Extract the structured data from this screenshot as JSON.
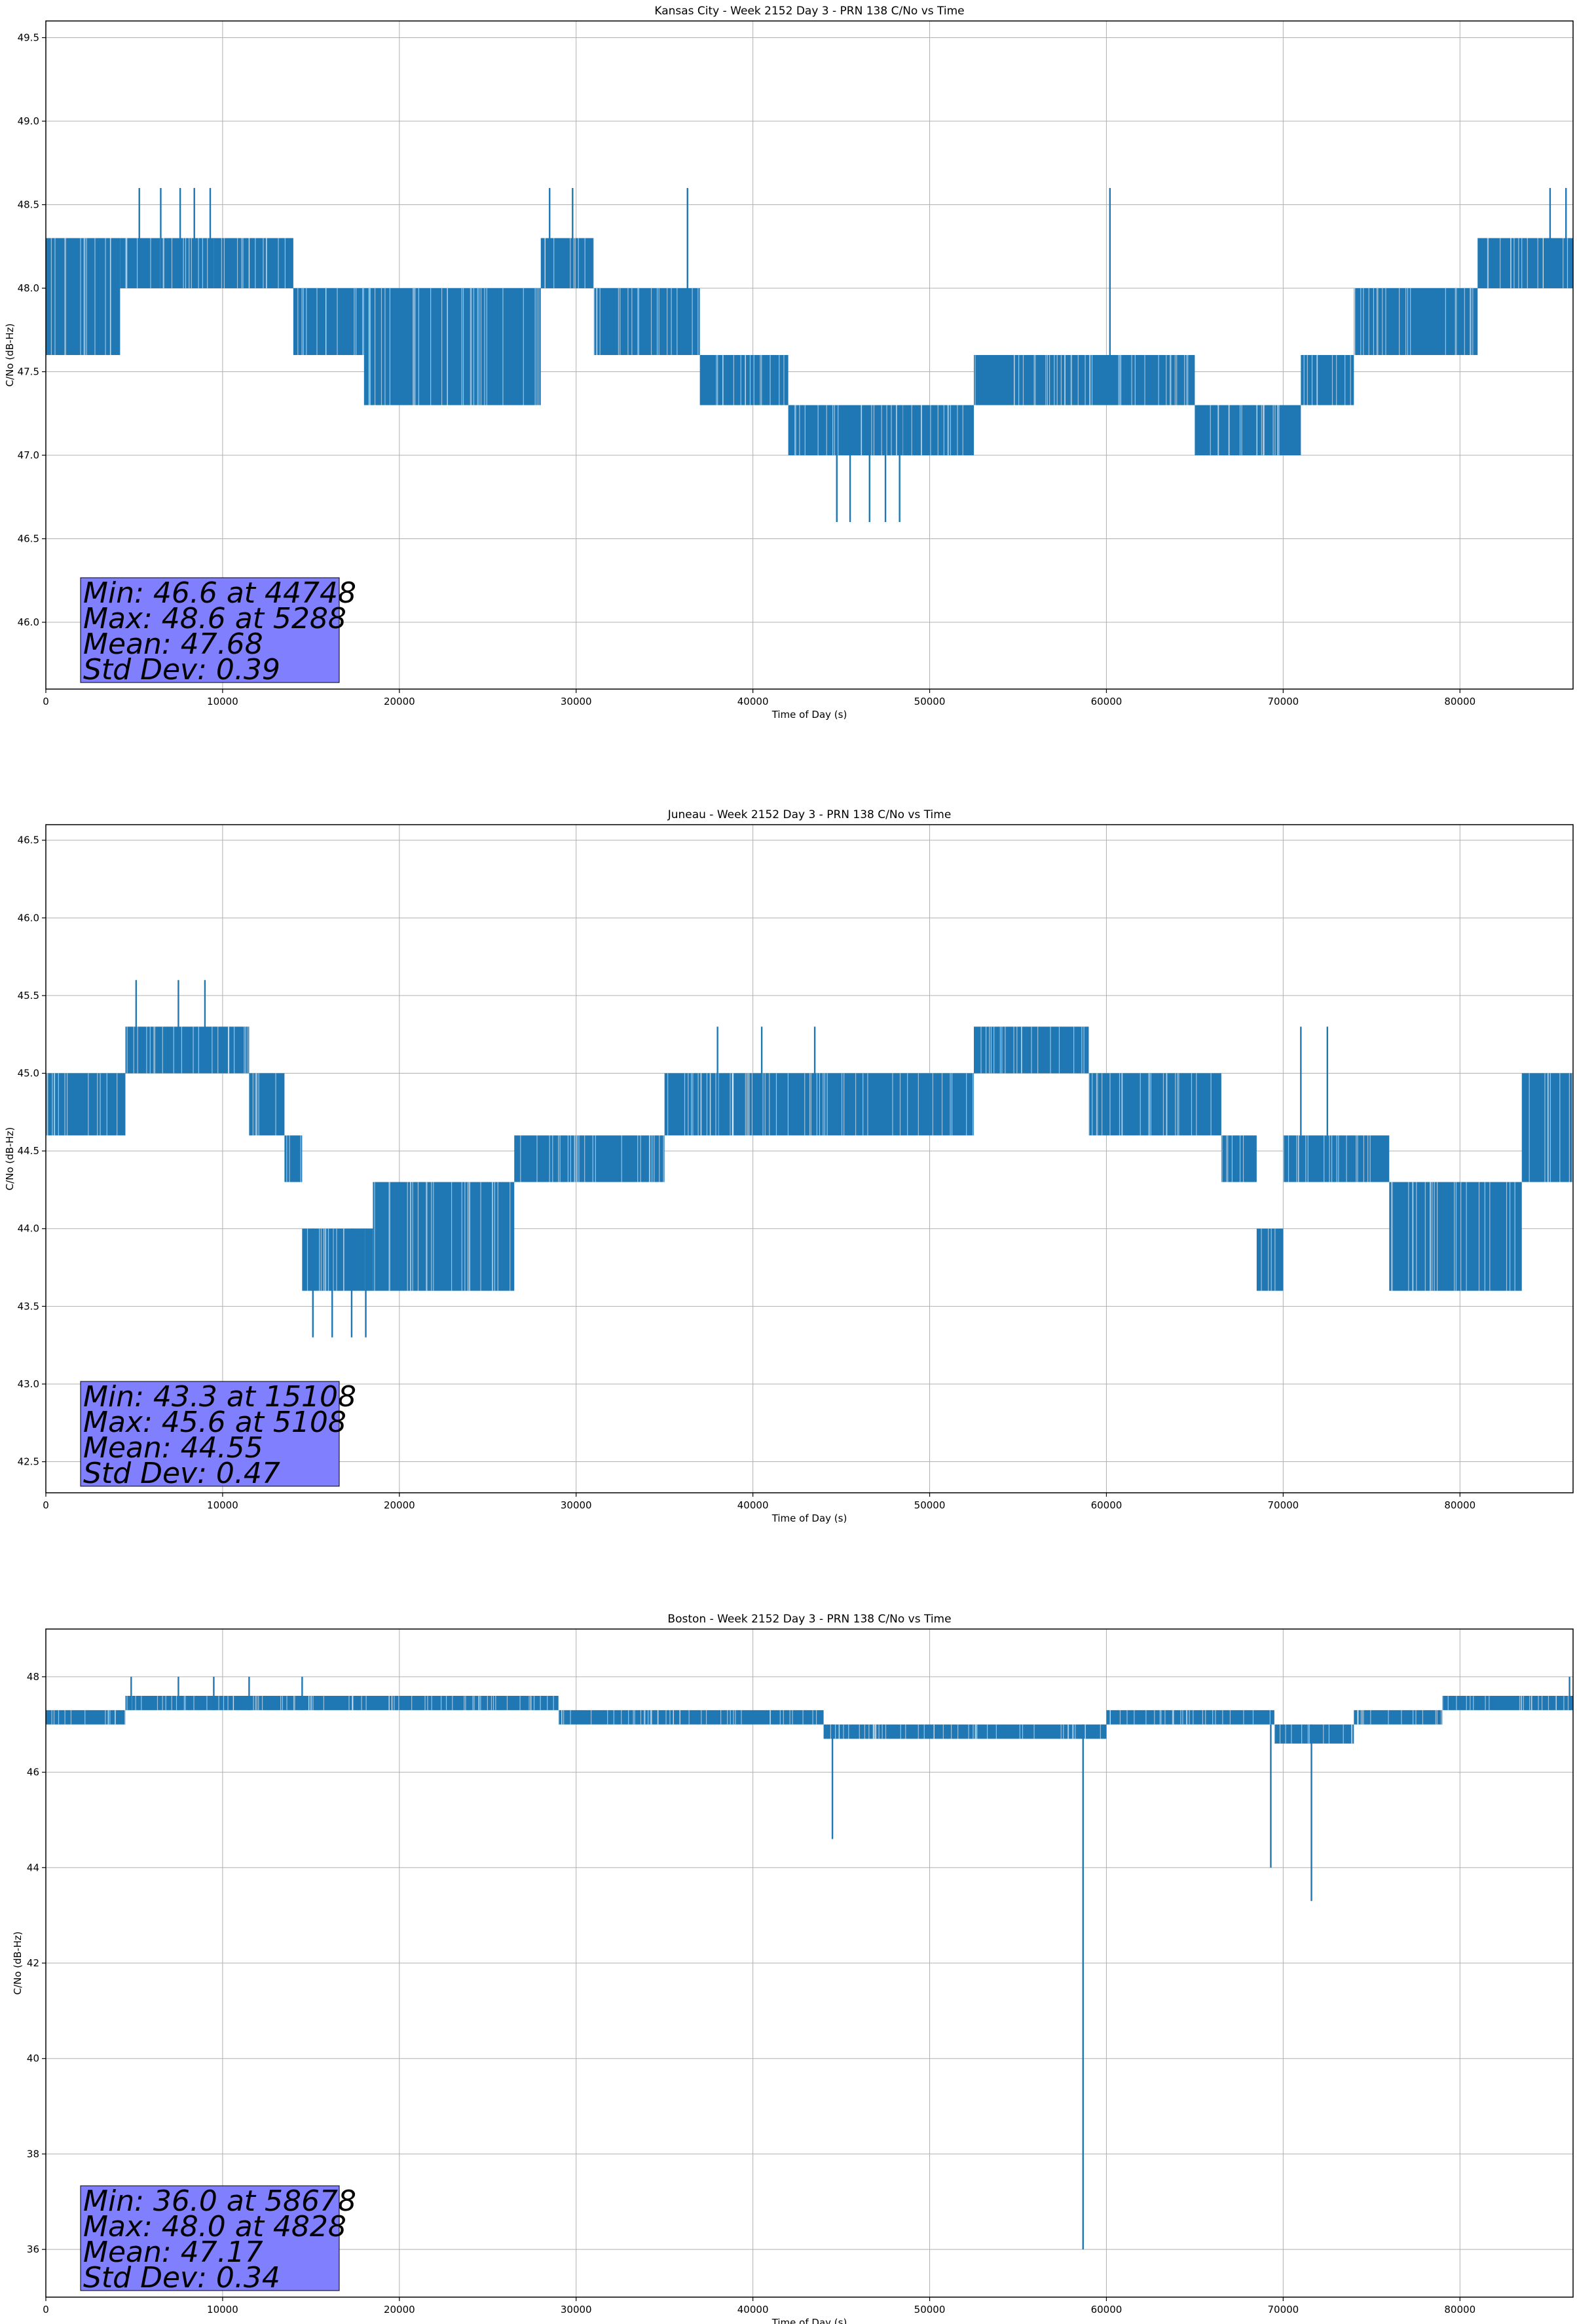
{
  "chart_data": [
    {
      "type": "line",
      "title": "Kansas City - Week 2152 Day 3 - PRN 138 C/No vs Time",
      "xlabel": "Time of Day (s)",
      "ylabel": "C/No (dB-Hz)",
      "xlim": [
        0,
        86400
      ],
      "ylim": [
        45.6,
        49.6
      ],
      "xticks": [
        0,
        10000,
        20000,
        30000,
        40000,
        50000,
        60000,
        70000,
        80000
      ],
      "yticks": [
        46.0,
        46.5,
        47.0,
        47.5,
        48.0,
        48.5,
        49.0,
        49.5
      ],
      "grid": true,
      "color": "#1f77b4",
      "segments": [
        {
          "x0": 0,
          "x1": 1500,
          "lo": 47.6,
          "hi": 48.3
        },
        {
          "x0": 1500,
          "x1": 4200,
          "lo": 47.6,
          "hi": 48.3
        },
        {
          "x0": 4200,
          "x1": 9500,
          "lo": 48.0,
          "hi": 48.3
        },
        {
          "x0": 9500,
          "x1": 14000,
          "lo": 48.0,
          "hi": 48.3
        },
        {
          "x0": 14000,
          "x1": 18000,
          "lo": 47.6,
          "hi": 48.0
        },
        {
          "x0": 18000,
          "x1": 28000,
          "lo": 47.3,
          "hi": 48.0
        },
        {
          "x0": 28000,
          "x1": 31000,
          "lo": 48.0,
          "hi": 48.3
        },
        {
          "x0": 31000,
          "x1": 37000,
          "lo": 47.6,
          "hi": 48.0
        },
        {
          "x0": 37000,
          "x1": 42000,
          "lo": 47.3,
          "hi": 47.6
        },
        {
          "x0": 42000,
          "x1": 48500,
          "lo": 47.0,
          "hi": 47.3
        },
        {
          "x0": 48500,
          "x1": 52500,
          "lo": 47.0,
          "hi": 47.3
        },
        {
          "x0": 52500,
          "x1": 58000,
          "lo": 47.3,
          "hi": 47.6
        },
        {
          "x0": 58000,
          "x1": 65000,
          "lo": 47.3,
          "hi": 47.6
        },
        {
          "x0": 65000,
          "x1": 71000,
          "lo": 47.0,
          "hi": 47.3
        },
        {
          "x0": 71000,
          "x1": 74000,
          "lo": 47.3,
          "hi": 47.6
        },
        {
          "x0": 74000,
          "x1": 81000,
          "lo": 47.6,
          "hi": 48.0
        },
        {
          "x0": 81000,
          "x1": 86400,
          "lo": 48.0,
          "hi": 48.3
        }
      ],
      "spikes": [
        {
          "x": 5288,
          "lo": 48.0,
          "hi": 48.6
        },
        {
          "x": 6500,
          "lo": 48.0,
          "hi": 48.6
        },
        {
          "x": 7600,
          "lo": 48.0,
          "hi": 48.6
        },
        {
          "x": 8400,
          "lo": 48.0,
          "hi": 48.6
        },
        {
          "x": 9300,
          "lo": 48.0,
          "hi": 48.6
        },
        {
          "x": 28500,
          "lo": 48.0,
          "hi": 48.6
        },
        {
          "x": 29800,
          "lo": 48.0,
          "hi": 48.6
        },
        {
          "x": 36300,
          "lo": 48.0,
          "hi": 48.6
        },
        {
          "x": 44748,
          "lo": 46.6,
          "hi": 47.3
        },
        {
          "x": 45500,
          "lo": 46.6,
          "hi": 47.3
        },
        {
          "x": 46600,
          "lo": 46.6,
          "hi": 47.3
        },
        {
          "x": 47500,
          "lo": 46.6,
          "hi": 47.3
        },
        {
          "x": 48300,
          "lo": 46.6,
          "hi": 47.3
        },
        {
          "x": 60200,
          "lo": 47.6,
          "hi": 48.6
        },
        {
          "x": 85100,
          "lo": 48.0,
          "hi": 48.6
        },
        {
          "x": 86000,
          "lo": 48.0,
          "hi": 48.6
        }
      ],
      "stats": {
        "min": "Min: 46.6 at 44748",
        "max": "Max: 48.6 at 5288",
        "mean": "Mean: 47.68",
        "std": "Std Dev: 0.39"
      }
    },
    {
      "type": "line",
      "title": "Juneau - Week 2152 Day 3 - PRN 138 C/No vs Time",
      "xlabel": "Time of Day (s)",
      "ylabel": "C/No (dB-Hz)",
      "xlim": [
        0,
        86400
      ],
      "ylim": [
        42.3,
        46.6
      ],
      "xticks": [
        0,
        10000,
        20000,
        30000,
        40000,
        50000,
        60000,
        70000,
        80000
      ],
      "yticks": [
        42.5,
        43.0,
        43.5,
        44.0,
        44.5,
        45.0,
        45.5,
        46.0,
        46.5
      ],
      "grid": true,
      "color": "#1f77b4",
      "segments": [
        {
          "x0": 0,
          "x1": 4500,
          "lo": 44.6,
          "hi": 45.0
        },
        {
          "x0": 4500,
          "x1": 11500,
          "lo": 45.0,
          "hi": 45.3
        },
        {
          "x0": 11500,
          "x1": 13500,
          "lo": 44.6,
          "hi": 45.0
        },
        {
          "x0": 13500,
          "x1": 14500,
          "lo": 44.3,
          "hi": 44.6
        },
        {
          "x0": 14500,
          "x1": 18500,
          "lo": 43.6,
          "hi": 44.0
        },
        {
          "x0": 18500,
          "x1": 26500,
          "lo": 43.6,
          "hi": 44.3
        },
        {
          "x0": 26500,
          "x1": 35000,
          "lo": 44.3,
          "hi": 44.6
        },
        {
          "x0": 35000,
          "x1": 52500,
          "lo": 44.6,
          "hi": 45.0
        },
        {
          "x0": 52500,
          "x1": 59000,
          "lo": 45.0,
          "hi": 45.3
        },
        {
          "x0": 59000,
          "x1": 66500,
          "lo": 44.6,
          "hi": 45.0
        },
        {
          "x0": 66500,
          "x1": 68500,
          "lo": 44.3,
          "hi": 44.6
        },
        {
          "x0": 68500,
          "x1": 70000,
          "lo": 43.6,
          "hi": 44.0
        },
        {
          "x0": 70000,
          "x1": 76000,
          "lo": 44.3,
          "hi": 44.6
        },
        {
          "x0": 76000,
          "x1": 83500,
          "lo": 43.6,
          "hi": 44.3
        },
        {
          "x0": 83500,
          "x1": 86400,
          "lo": 44.3,
          "hi": 45.0
        }
      ],
      "spikes": [
        {
          "x": 5108,
          "lo": 45.0,
          "hi": 45.6
        },
        {
          "x": 7500,
          "lo": 45.0,
          "hi": 45.6
        },
        {
          "x": 9000,
          "lo": 45.0,
          "hi": 45.6
        },
        {
          "x": 15108,
          "lo": 43.3,
          "hi": 44.0
        },
        {
          "x": 16200,
          "lo": 43.3,
          "hi": 44.0
        },
        {
          "x": 17300,
          "lo": 43.3,
          "hi": 44.0
        },
        {
          "x": 18100,
          "lo": 43.3,
          "hi": 44.0
        },
        {
          "x": 38000,
          "lo": 44.6,
          "hi": 45.3
        },
        {
          "x": 40500,
          "lo": 44.6,
          "hi": 45.3
        },
        {
          "x": 43500,
          "lo": 44.6,
          "hi": 45.3
        },
        {
          "x": 71000,
          "lo": 44.6,
          "hi": 45.3
        },
        {
          "x": 72500,
          "lo": 44.6,
          "hi": 45.3
        }
      ],
      "stats": {
        "min": "Min: 43.3 at 15108",
        "max": "Max: 45.6 at 5108",
        "mean": "Mean: 44.55",
        "std": "Std Dev: 0.47"
      }
    },
    {
      "type": "line",
      "title": "Boston - Week 2152 Day 3 - PRN 138 C/No vs Time",
      "xlabel": "Time of Day (s)",
      "ylabel": "C/No (dB-Hz)",
      "xlim": [
        0,
        86400
      ],
      "ylim": [
        35.0,
        49.0
      ],
      "xticks": [
        0,
        10000,
        20000,
        30000,
        40000,
        50000,
        60000,
        70000,
        80000
      ],
      "yticks": [
        36,
        38,
        40,
        42,
        44,
        46,
        48
      ],
      "grid": true,
      "color": "#1f77b4",
      "segments": [
        {
          "x0": 0,
          "x1": 4500,
          "lo": 47.0,
          "hi": 47.3
        },
        {
          "x0": 4500,
          "x1": 15000,
          "lo": 47.3,
          "hi": 47.6
        },
        {
          "x0": 15000,
          "x1": 29000,
          "lo": 47.3,
          "hi": 47.6
        },
        {
          "x0": 29000,
          "x1": 44000,
          "lo": 47.0,
          "hi": 47.3
        },
        {
          "x0": 44000,
          "x1": 60000,
          "lo": 46.7,
          "hi": 47.0
        },
        {
          "x0": 60000,
          "x1": 69500,
          "lo": 47.0,
          "hi": 47.3
        },
        {
          "x0": 69500,
          "x1": 74000,
          "lo": 46.6,
          "hi": 47.0
        },
        {
          "x0": 74000,
          "x1": 79000,
          "lo": 47.0,
          "hi": 47.3
        },
        {
          "x0": 79000,
          "x1": 86400,
          "lo": 47.3,
          "hi": 47.6
        }
      ],
      "spikes": [
        {
          "x": 4828,
          "lo": 47.3,
          "hi": 48.0
        },
        {
          "x": 7500,
          "lo": 47.3,
          "hi": 48.0
        },
        {
          "x": 9500,
          "lo": 47.3,
          "hi": 48.0
        },
        {
          "x": 11500,
          "lo": 47.3,
          "hi": 48.0
        },
        {
          "x": 14500,
          "lo": 47.3,
          "hi": 48.0
        },
        {
          "x": 44500,
          "lo": 44.6,
          "hi": 47.0
        },
        {
          "x": 58678,
          "lo": 36.0,
          "hi": 47.0
        },
        {
          "x": 69300,
          "lo": 44.0,
          "hi": 47.0
        },
        {
          "x": 71600,
          "lo": 43.3,
          "hi": 47.0
        },
        {
          "x": 86200,
          "lo": 47.3,
          "hi": 48.0
        }
      ],
      "stats": {
        "min": "Min: 36.0 at 58678",
        "max": "Max: 48.0 at 4828",
        "mean": "Mean: 47.17",
        "std": "Std Dev: 0.34"
      }
    }
  ]
}
